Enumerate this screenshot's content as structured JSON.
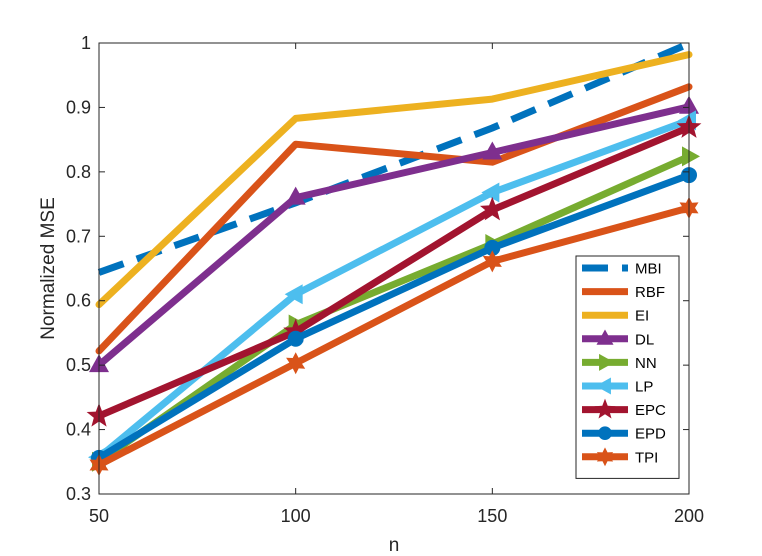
{
  "chart_data": {
    "type": "line",
    "title": "",
    "xlabel": "n",
    "ylabel": "Normalized MSE",
    "xlim": [
      50,
      200
    ],
    "ylim": [
      0.3,
      1
    ],
    "xticks": [
      50,
      100,
      150,
      200
    ],
    "xtick_labels": [
      "50",
      "100",
      "150",
      "200"
    ],
    "yticks": [
      0.3,
      0.4,
      0.5,
      0.6,
      0.7,
      0.8,
      0.9,
      1
    ],
    "ytick_labels": [
      "0.3",
      "0.4",
      "0.5",
      "0.6",
      "0.7",
      "0.8",
      "0.9",
      "1"
    ],
    "grid": false,
    "legend_position": "lower-right",
    "x": [
      50,
      100,
      150,
      200
    ],
    "series": [
      {
        "name": "MBI",
        "values": [
          0.644,
          0.752,
          0.868,
          0.999
        ],
        "color": "#0072BD",
        "dash": true,
        "marker": "none"
      },
      {
        "name": "RBF",
        "values": [
          0.522,
          0.843,
          0.815,
          0.932
        ],
        "color": "#D95319",
        "dash": false,
        "marker": "none"
      },
      {
        "name": "EI",
        "values": [
          0.594,
          0.883,
          0.913,
          0.982
        ],
        "color": "#EDB120",
        "dash": false,
        "marker": "none"
      },
      {
        "name": "DL",
        "values": [
          0.5,
          0.76,
          0.83,
          0.901
        ],
        "color": "#7E2F8E",
        "dash": false,
        "marker": "triangle-up"
      },
      {
        "name": "NN",
        "values": [
          0.35,
          0.563,
          0.688,
          0.824
        ],
        "color": "#77AC30",
        "dash": false,
        "marker": "triangle-right"
      },
      {
        "name": "LP",
        "values": [
          0.357,
          0.61,
          0.768,
          0.88
        ],
        "color": "#4DBEEE",
        "dash": false,
        "marker": "triangle-left"
      },
      {
        "name": "EPC",
        "values": [
          0.421,
          0.552,
          0.741,
          0.869
        ],
        "color": "#A2142F",
        "dash": false,
        "marker": "pentagram"
      },
      {
        "name": "EPD",
        "values": [
          0.356,
          0.541,
          0.682,
          0.795
        ],
        "color": "#0072BD",
        "dash": false,
        "marker": "circle"
      },
      {
        "name": "TPI",
        "values": [
          0.345,
          0.503,
          0.661,
          0.744
        ],
        "color": "#D95319",
        "dash": false,
        "marker": "hexagram"
      }
    ]
  }
}
